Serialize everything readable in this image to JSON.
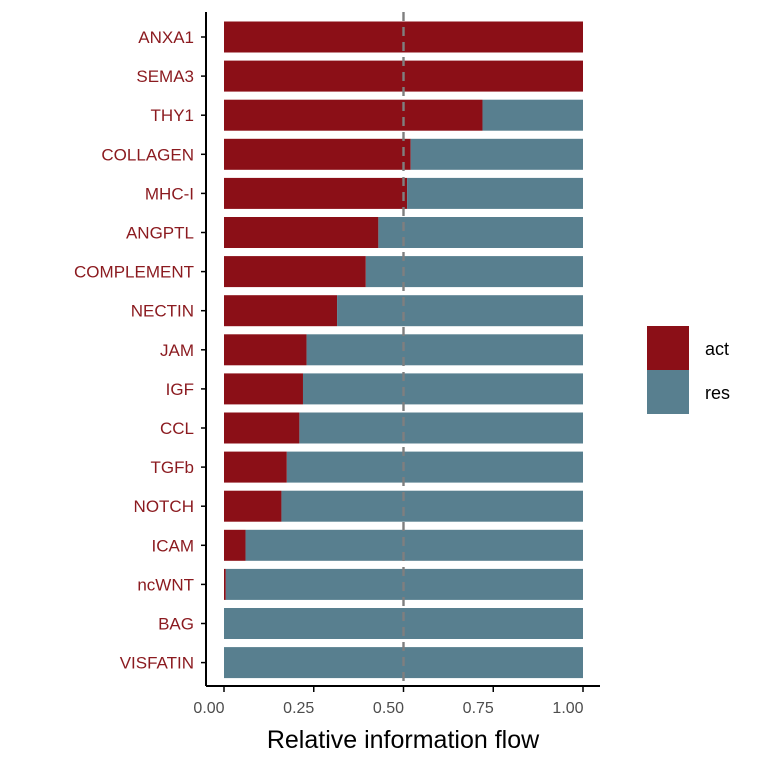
{
  "chart_data": {
    "type": "bar",
    "orientation": "horizontal",
    "stacked": true,
    "categories": [
      "ANXA1",
      "SEMA3",
      "THY1",
      "COLLAGEN",
      "MHC-I",
      "ANGPTL",
      "COMPLEMENT",
      "NECTIN",
      "JAM",
      "IGF",
      "CCL",
      "TGFb",
      "NOTCH",
      "ICAM",
      "ncWNT",
      "BAG",
      "VISFATIN"
    ],
    "series": [
      {
        "name": "act",
        "color": "#8B0F17",
        "values": [
          1.0,
          1.0,
          0.72,
          0.52,
          0.51,
          0.43,
          0.395,
          0.315,
          0.23,
          0.22,
          0.21,
          0.175,
          0.16,
          0.06,
          0.005,
          0.0,
          0.0
        ]
      },
      {
        "name": "res",
        "color": "#587F8F",
        "values": [
          0.0,
          0.0,
          0.28,
          0.48,
          0.49,
          0.57,
          0.605,
          0.685,
          0.77,
          0.78,
          0.79,
          0.825,
          0.84,
          0.94,
          0.995,
          1.0,
          1.0
        ]
      }
    ],
    "xlabel": "Relative information flow",
    "ylabel": "",
    "xlim": [
      0,
      1
    ],
    "xticks": [
      "0.00",
      "0.25",
      "0.50",
      "0.75",
      "1.00"
    ],
    "reference_line": {
      "x": 0.5,
      "style": "dashed",
      "color": "#7f7f7f"
    },
    "grid": false,
    "legend": {
      "placement": "right",
      "entries": [
        "act",
        "res"
      ]
    }
  }
}
